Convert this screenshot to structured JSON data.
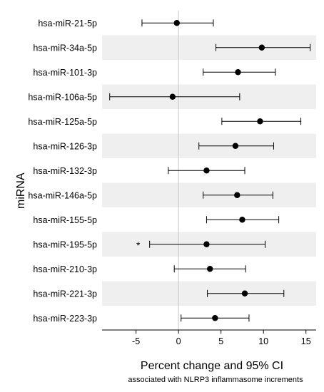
{
  "chart_data": {
    "type": "forest",
    "ylabel": "miRNA",
    "xlabel": "Percent change and 95% CI",
    "xlabel_sub": "associated with NLRP3 inflammasome increments",
    "xlim": [
      -9,
      16.2
    ],
    "xticks": [
      "-5",
      "0",
      "5",
      "10",
      "15"
    ],
    "xtick_values": [
      -5,
      0,
      5,
      10,
      15
    ],
    "reference_line": 0,
    "band_color": "#efefef",
    "rows": [
      {
        "label": "hsa-miR-21-5p",
        "estimate": -0.2,
        "lower": -4.3,
        "upper": 4.1,
        "note": ""
      },
      {
        "label": "hsa-miR-34a-5p",
        "estimate": 9.8,
        "lower": 4.4,
        "upper": 15.5,
        "note": ""
      },
      {
        "label": "hsa-miR-101-3p",
        "estimate": 7.0,
        "lower": 2.9,
        "upper": 11.4,
        "note": ""
      },
      {
        "label": "hsa-miR-106a-5p",
        "estimate": -0.7,
        "lower": -8.1,
        "upper": 7.2,
        "note": ""
      },
      {
        "label": "hsa-miR-125a-5p",
        "estimate": 9.6,
        "lower": 5.1,
        "upper": 14.4,
        "note": ""
      },
      {
        "label": "hsa-miR-126-3p",
        "estimate": 6.7,
        "lower": 2.4,
        "upper": 11.2,
        "note": ""
      },
      {
        "label": "hsa-miR-132-3p",
        "estimate": 3.3,
        "lower": -1.2,
        "upper": 7.8,
        "note": ""
      },
      {
        "label": "hsa-miR-146a-5p",
        "estimate": 6.9,
        "lower": 2.9,
        "upper": 11.1,
        "note": ""
      },
      {
        "label": "hsa-miR-155-5p",
        "estimate": 7.5,
        "lower": 3.3,
        "upper": 11.8,
        "note": ""
      },
      {
        "label": "hsa-miR-195-5p",
        "estimate": 3.3,
        "lower": -3.4,
        "upper": 10.2,
        "note": "*"
      },
      {
        "label": "hsa-miR-210-3p",
        "estimate": 3.7,
        "lower": -0.5,
        "upper": 7.9,
        "note": ""
      },
      {
        "label": "hsa-miR-221-3p",
        "estimate": 7.8,
        "lower": 3.4,
        "upper": 12.4,
        "note": ""
      },
      {
        "label": "hsa-miR-223-3p",
        "estimate": 4.3,
        "lower": 0.3,
        "upper": 8.3,
        "note": ""
      }
    ]
  }
}
